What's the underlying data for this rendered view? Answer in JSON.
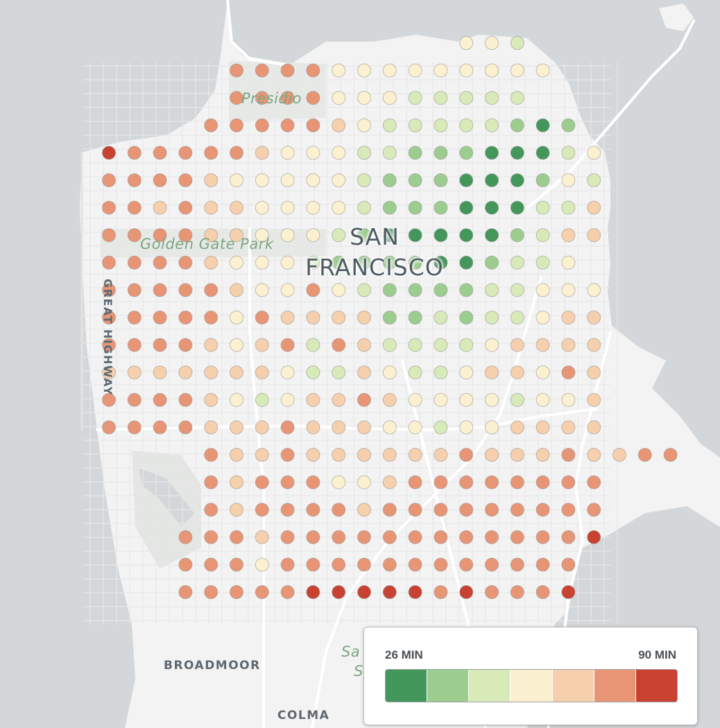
{
  "map": {
    "labels": {
      "presidio": "Presidio",
      "golden_gate_park": "Golden Gate Park",
      "city_line1": "SAN",
      "city_line2": "FRANCISCO",
      "great_highway": "GREAT HIGHWAY",
      "broadmoor": "BROADMOOR",
      "colma": "COLMA",
      "sa_fragment_1": "Sa",
      "sa_fragment_2": "S"
    },
    "colors": {
      "water": "#d4d7d9",
      "land": "#f3f3f3",
      "park": "#e4e7e4",
      "road": "#ffffff",
      "dot_stroke": "#8e8e8e"
    }
  },
  "legend": {
    "min_label": "26 MIN",
    "max_label": "90 MIN",
    "colors": [
      "#43975a",
      "#9ccd8f",
      "#d7eab8",
      "#fbf0cf",
      "#f6cfac",
      "#e89576",
      "#c84131"
    ]
  },
  "grid": {
    "rows": [
      {
        "start": 14,
        "c": "4 4 3"
      },
      {
        "start": 5,
        "c": "6 6 6 6 4 4 4 4 4 4 4 4 4"
      },
      {
        "start": 5,
        "c": "6 6 6 6 4 4 4 3 3 3 3 3"
      },
      {
        "start": 4,
        "c": "6 6 6 6 6 5 4 3 3 3 3 3 2 1 2"
      },
      {
        "start": 0,
        "c": "7 6 6 6 6 6 5 4 4 4 3 3 2 2 2 1 1 1 3 4"
      },
      {
        "start": 0,
        "c": "6 6 6 6 5 4 4 4 4 4 3 2 2 2 1 1 1 2 4 3"
      },
      {
        "start": 0,
        "c": "6 6 5 6 5 5 4 4 4 4 3 2 2 2 1 1 1 3 3 5"
      },
      {
        "start": 0,
        "c": "6 6 6 6 5 5 4 4 4 3 2 1 1 1 1 1 2 3 5 5"
      },
      {
        "start": 0,
        "c": "6 6 6 6 5 4 4 4 3 2 2 2 2 1 1 2 3 3 4"
      },
      {
        "start": 0,
        "c": "6 6 6 6 6 5 4 4 6 4 3 2 2 2 2 3 3 4 4 4"
      },
      {
        "start": 0,
        "c": "6 6 6 6 6 4 6 5 5 5 5 2 2 3 2 3 3 4 5 5"
      },
      {
        "start": 0,
        "c": "6 6 6 6 5 4 5 6 3 6 5 3 3 3 3 4 5 5 5 5"
      },
      {
        "start": 0,
        "c": "5 5 5 5 5 5 5 4 3 3 5 4 3 3 4 5 5 4 6 5"
      },
      {
        "start": 0,
        "c": "6 6 6 6 5 4 3 4 5 5 6 5 4 4 4 4 3 4 4 5"
      },
      {
        "start": 0,
        "c": "6 6 6 6 5 5 5 6 5 5 5 4 4 3 4 4 5 5 5 5"
      },
      {
        "start": 4,
        "c": "6 5 5 6 5 5 5 5 5 5 6 5 5 5 6 5 5 6 6"
      },
      {
        "start": 4,
        "c": "6 5 6 6 6 4 4 5 6 6 6 6 6 6 6 6"
      },
      {
        "start": 4,
        "c": "6 5 6 6 6 6 5 6 6 6 6 6 6 6 6 6"
      },
      {
        "start": 3,
        "c": "6 6 6 5 6 6 6 6 6 6 6 6 6 6 6 6 7"
      },
      {
        "start": 3,
        "c": "6 6 6 4 6 6 6 6 6 6 6 6 6 6 6 6"
      },
      {
        "start": 3,
        "c": "6 6 6 6 6 7 7 7 7 7 6 7 6 6 6 7"
      }
    ]
  }
}
